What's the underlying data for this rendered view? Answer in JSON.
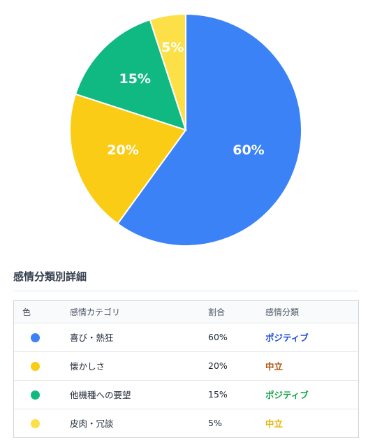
{
  "chart_data": {
    "type": "pie",
    "categories": [
      "喜び・熱狂",
      "懐かしさ",
      "他機種への要望",
      "皮肉・冗談"
    ],
    "values": [
      60,
      20,
      15,
      5
    ],
    "labels": [
      "60%",
      "20%",
      "15%",
      "5%"
    ],
    "colors": [
      "#3b82f6",
      "#facc15",
      "#10b981",
      "#fde047"
    ],
    "start_angle_deg": 0,
    "direction": "clockwise"
  },
  "section": {
    "title": "感情分類別詳細"
  },
  "table": {
    "headers": {
      "color": "色",
      "category": "感情カテゴリ",
      "ratio": "割合",
      "classification": "感情分類"
    },
    "rows": [
      {
        "color": "#3b82f6",
        "category": "喜び・熱狂",
        "ratio": "60%",
        "classification": "ポジティブ",
        "class_color": "#1d4ed8"
      },
      {
        "color": "#facc15",
        "category": "懐かしさ",
        "ratio": "20%",
        "classification": "中立",
        "class_color": "#b45309"
      },
      {
        "color": "#10b981",
        "category": "他機種への要望",
        "ratio": "15%",
        "classification": "ポジティブ",
        "class_color": "#16a34a"
      },
      {
        "color": "#fde047",
        "category": "皮肉・冗談",
        "ratio": "5%",
        "classification": "中立",
        "class_color": "#eab308"
      }
    ]
  }
}
